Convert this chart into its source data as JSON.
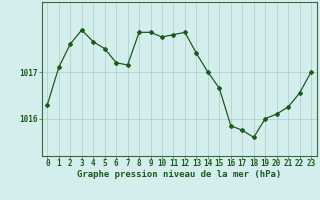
{
  "hours": [
    0,
    1,
    2,
    3,
    4,
    5,
    6,
    7,
    8,
    9,
    10,
    11,
    12,
    13,
    14,
    15,
    16,
    17,
    18,
    19,
    20,
    21,
    22,
    23
  ],
  "pressure": [
    1016.3,
    1017.1,
    1017.6,
    1017.9,
    1017.65,
    1017.5,
    1017.2,
    1017.15,
    1017.85,
    1017.85,
    1017.75,
    1017.8,
    1017.85,
    1017.4,
    1017.0,
    1016.65,
    1015.85,
    1015.75,
    1015.6,
    1016.0,
    1016.1,
    1016.25,
    1016.55,
    1017.0
  ],
  "line_color": "#1a5c1a",
  "marker": "D",
  "markersize": 2.0,
  "linewidth": 0.9,
  "bg_color": "#d4eeee",
  "grid_color": "#b0c8c8",
  "ytick_labels": [
    "1016",
    "1017"
  ],
  "ytick_values": [
    1016.0,
    1017.0
  ],
  "xlabel": "Graphe pression niveau de la mer (hPa)",
  "xlabel_fontsize": 6.5,
  "xlabel_color": "#1a5c1a",
  "tick_fontsize": 5.5,
  "tick_color": "#1a5c1a",
  "ylim": [
    1015.2,
    1018.5
  ],
  "xlim": [
    -0.5,
    23.5
  ]
}
